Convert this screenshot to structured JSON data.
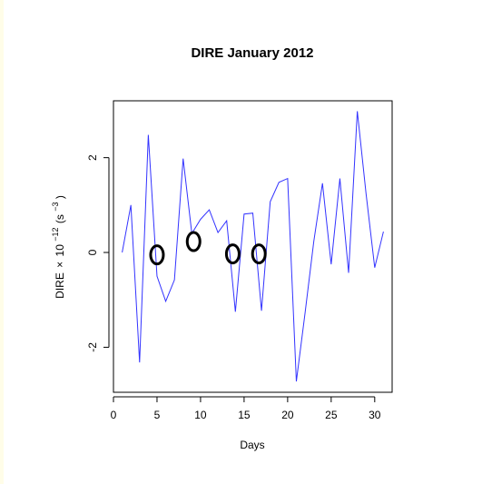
{
  "chart_data": {
    "type": "line",
    "title": "DIRE January 2012",
    "xlabel": "Days",
    "ylabel": {
      "prefix": "DIRE",
      "times": "×",
      "base": "10",
      "exponent": "−12",
      "unit_open": "(s",
      "unit_exponent": "−3",
      "unit_close": ")"
    },
    "xlim": [
      0,
      32
    ],
    "ylim": [
      -2.95,
      3.2
    ],
    "x_ticks": [
      {
        "value": 0,
        "label": "0"
      },
      {
        "value": 5,
        "label": "5"
      },
      {
        "value": 10,
        "label": "10"
      },
      {
        "value": 15,
        "label": "15"
      },
      {
        "value": 20,
        "label": "20"
      },
      {
        "value": 25,
        "label": "25"
      },
      {
        "value": 30,
        "label": "30"
      }
    ],
    "y_ticks": [
      {
        "value": -2,
        "label": "-2"
      },
      {
        "value": 0,
        "label": "0"
      },
      {
        "value": 2,
        "label": "2"
      }
    ],
    "grid": false,
    "line_color": "#3333ff",
    "marker_color": "#000000",
    "series": [
      {
        "x": [
          1,
          2,
          3,
          4,
          5,
          6,
          7,
          8,
          9,
          10,
          11,
          12,
          13,
          14,
          15,
          16,
          17,
          18,
          19,
          20,
          21,
          22,
          23,
          24,
          25,
          26,
          27,
          28,
          29,
          30,
          31
        ],
        "values": [
          0.0,
          1.0,
          -2.32,
          2.48,
          -0.5,
          -1.03,
          -0.58,
          1.98,
          0.4,
          0.7,
          0.9,
          0.42,
          0.67,
          -1.25,
          0.81,
          0.83,
          -1.23,
          1.07,
          1.48,
          1.56,
          -2.72,
          -1.28,
          0.23,
          1.46,
          -0.25,
          1.56,
          -0.43,
          2.98,
          1.25,
          -0.32,
          0.44
        ]
      }
    ],
    "annotations": [
      {
        "type": "circle",
        "x": 5.0,
        "y": -0.05
      },
      {
        "type": "circle",
        "x": 9.2,
        "y": 0.23
      },
      {
        "type": "circle",
        "x": 13.7,
        "y": -0.03
      },
      {
        "type": "circle",
        "x": 16.7,
        "y": -0.03
      }
    ]
  }
}
